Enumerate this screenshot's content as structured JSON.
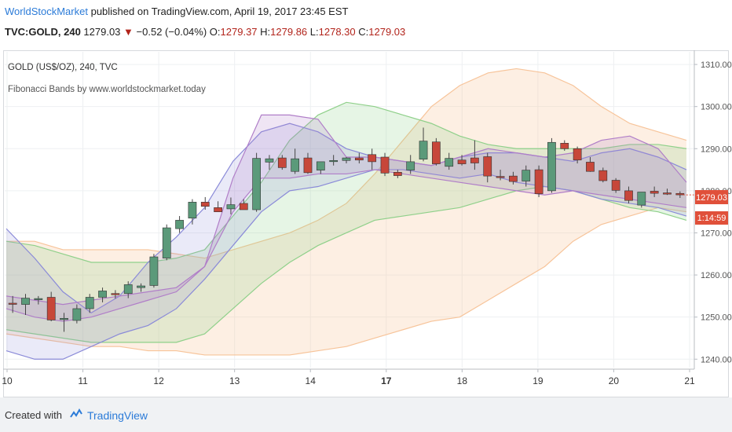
{
  "header": {
    "publisher": "WorldStockMarket",
    "published_text": "published on TradingView.com, April 19, 2017 23:45 EST",
    "symbol": "TVC:GOLD, 240",
    "last": "1279.03",
    "change": "−0.52 (−0.04%)",
    "o_label": "O:",
    "o_value": "1279.37",
    "h_label": "H:",
    "h_value": "1279.86",
    "l_label": "L:",
    "l_value": "1278.30",
    "c_label": "C:",
    "c_value": "1279.03"
  },
  "legend": {
    "title": "GOLD (US$/OZ), 240, TVC",
    "indicator": "Fibonacci Bands by www.worldstockmarket.today"
  },
  "price_label": "1279.03",
  "countdown_label": "1:14:59",
  "footer": {
    "created_with": "Created with",
    "brand": "TradingView"
  },
  "colors": {
    "up": "#5b9a7a",
    "down": "#c7473a",
    "orange_band": "#f7c49a",
    "green_band": "#8fd08a",
    "blue_band": "#8a8ad8",
    "purple_band": "#b07ec8",
    "accent": "#2b7bd8",
    "price_tag": "#e0503a"
  },
  "chart_data": {
    "type": "candlestick",
    "x_ticks": [
      "10",
      "11",
      "12",
      "13",
      "14",
      "17",
      "18",
      "19",
      "20",
      "21"
    ],
    "y_ticks": [
      1240,
      1250,
      1260,
      1270,
      1280,
      1290,
      1300,
      1310
    ],
    "y_tick_labels": [
      "1240.00",
      "1250.00",
      "1260.00",
      "1270.00",
      "1280.00",
      "1290.00",
      "1300.00",
      "1310.00"
    ],
    "ylim": [
      1238,
      1313
    ],
    "candles": [
      {
        "o": 1253.3,
        "h": 1255,
        "l": 1251,
        "c": 1253.1
      },
      {
        "o": 1253,
        "h": 1255.5,
        "l": 1250.5,
        "c": 1254.5
      },
      {
        "o": 1254.2,
        "h": 1255,
        "l": 1253,
        "c": 1254.4
      },
      {
        "o": 1254.7,
        "h": 1256,
        "l": 1249,
        "c": 1249.3
      },
      {
        "o": 1249.4,
        "h": 1251,
        "l": 1246.5,
        "c": 1249.7
      },
      {
        "o": 1249.2,
        "h": 1253,
        "l": 1248.5,
        "c": 1252
      },
      {
        "o": 1252,
        "h": 1255.5,
        "l": 1251,
        "c": 1254.7
      },
      {
        "o": 1254.7,
        "h": 1257,
        "l": 1253.5,
        "c": 1256.2
      },
      {
        "o": 1255.6,
        "h": 1256.4,
        "l": 1254.4,
        "c": 1255.3
      },
      {
        "o": 1255.6,
        "h": 1258.5,
        "l": 1254.5,
        "c": 1257.7
      },
      {
        "o": 1257,
        "h": 1258,
        "l": 1256,
        "c": 1257.4
      },
      {
        "o": 1257.5,
        "h": 1265,
        "l": 1257,
        "c": 1264.3
      },
      {
        "o": 1264,
        "h": 1272,
        "l": 1263.5,
        "c": 1271.2
      },
      {
        "o": 1271,
        "h": 1274,
        "l": 1270,
        "c": 1273
      },
      {
        "o": 1273.5,
        "h": 1278,
        "l": 1272,
        "c": 1277.3
      },
      {
        "o": 1277.3,
        "h": 1278.5,
        "l": 1275.5,
        "c": 1276.3
      },
      {
        "o": 1276,
        "h": 1277.5,
        "l": 1275,
        "c": 1275
      },
      {
        "o": 1275.7,
        "h": 1278.4,
        "l": 1274.4,
        "c": 1276.7
      },
      {
        "o": 1277,
        "h": 1278,
        "l": 1275.5,
        "c": 1275.5
      },
      {
        "o": 1275.5,
        "h": 1289,
        "l": 1275,
        "c": 1287.7
      },
      {
        "o": 1286.8,
        "h": 1288.5,
        "l": 1285,
        "c": 1287.6
      },
      {
        "o": 1287.8,
        "h": 1288.5,
        "l": 1285,
        "c": 1285.5
      },
      {
        "o": 1284.6,
        "h": 1290,
        "l": 1284,
        "c": 1287.6
      },
      {
        "o": 1287.8,
        "h": 1289,
        "l": 1284,
        "c": 1284.3
      },
      {
        "o": 1284.9,
        "h": 1286.5,
        "l": 1284,
        "c": 1286.9
      },
      {
        "o": 1287,
        "h": 1288.5,
        "l": 1286,
        "c": 1287.2
      },
      {
        "o": 1287.2,
        "h": 1288,
        "l": 1286.5,
        "c": 1287.8
      },
      {
        "o": 1287.8,
        "h": 1289,
        "l": 1286.5,
        "c": 1287.3
      },
      {
        "o": 1288.6,
        "h": 1290,
        "l": 1285,
        "c": 1286.9
      },
      {
        "o": 1288,
        "h": 1289,
        "l": 1283.5,
        "c": 1284.2
      },
      {
        "o": 1284.4,
        "h": 1285,
        "l": 1283,
        "c": 1283.6
      },
      {
        "o": 1284.9,
        "h": 1288.5,
        "l": 1284,
        "c": 1286.9
      },
      {
        "o": 1287.5,
        "h": 1295,
        "l": 1287,
        "c": 1291.8
      },
      {
        "o": 1291.6,
        "h": 1292.5,
        "l": 1286,
        "c": 1286.4
      },
      {
        "o": 1285.8,
        "h": 1289,
        "l": 1285,
        "c": 1287.7
      },
      {
        "o": 1287.3,
        "h": 1288.5,
        "l": 1286,
        "c": 1286.4
      },
      {
        "o": 1287.8,
        "h": 1292,
        "l": 1285,
        "c": 1286.6
      },
      {
        "o": 1288.1,
        "h": 1289,
        "l": 1282,
        "c": 1283.5
      },
      {
        "o": 1283.4,
        "h": 1285,
        "l": 1282.5,
        "c": 1283.3
      },
      {
        "o": 1283.5,
        "h": 1284.5,
        "l": 1281.5,
        "c": 1282.2
      },
      {
        "o": 1282.3,
        "h": 1286,
        "l": 1281,
        "c": 1284.9
      },
      {
        "o": 1285,
        "h": 1286,
        "l": 1278.5,
        "c": 1279.3
      },
      {
        "o": 1280,
        "h": 1292.5,
        "l": 1279.5,
        "c": 1291.5
      },
      {
        "o": 1291.3,
        "h": 1292,
        "l": 1289.5,
        "c": 1290
      },
      {
        "o": 1290,
        "h": 1290.5,
        "l": 1286.5,
        "c": 1287.3
      },
      {
        "o": 1286.8,
        "h": 1288,
        "l": 1284.5,
        "c": 1284.6
      },
      {
        "o": 1284.8,
        "h": 1285.5,
        "l": 1282,
        "c": 1282.4
      },
      {
        "o": 1282.5,
        "h": 1283,
        "l": 1279.5,
        "c": 1280.1
      },
      {
        "o": 1280,
        "h": 1281,
        "l": 1277,
        "c": 1277.7
      },
      {
        "o": 1276.6,
        "h": 1279.5,
        "l": 1276,
        "c": 1279.7
      },
      {
        "o": 1279.9,
        "h": 1281,
        "l": 1278.5,
        "c": 1279.4
      },
      {
        "o": 1279.5,
        "h": 1280.5,
        "l": 1279,
        "c": 1279.2
      },
      {
        "o": 1279.37,
        "h": 1279.86,
        "l": 1278.3,
        "c": 1279.03
      }
    ],
    "bands": {
      "orange": {
        "upper": [
          1268,
          1268,
          1266,
          1266,
          1266,
          1266,
          1265,
          1264,
          1266,
          1268,
          1270,
          1273,
          1277,
          1284,
          1292,
          1300,
          1305,
          1308,
          1309,
          1308,
          1305,
          1300,
          1296,
          1294,
          1292
        ],
        "lower": [
          1246,
          1245,
          1244,
          1243,
          1243,
          1242,
          1242,
          1241,
          1241,
          1241,
          1241,
          1242,
          1243,
          1245,
          1247,
          1249,
          1250,
          1254,
          1258,
          1262,
          1268,
          1272,
          1274,
          1276,
          1275
        ]
      },
      "green": {
        "upper": [
          1268,
          1267,
          1265,
          1263,
          1263,
          1263,
          1264,
          1266,
          1274,
          1282,
          1292,
          1298,
          1301,
          1300,
          1298,
          1296,
          1293,
          1291,
          1290,
          1290,
          1290,
          1290,
          1291,
          1291,
          1290
        ],
        "lower": [
          1247,
          1246,
          1245,
          1244,
          1244,
          1244,
          1244,
          1246,
          1252,
          1258,
          1263,
          1267,
          1270,
          1273,
          1274,
          1275,
          1276,
          1278,
          1280,
          1281,
          1280,
          1278,
          1276,
          1275,
          1273
        ]
      },
      "blue": {
        "upper": [
          1271,
          1264,
          1256,
          1251,
          1255,
          1263,
          1269,
          1276,
          1287,
          1294,
          1296,
          1294,
          1290,
          1288,
          1287,
          1286,
          1288,
          1289,
          1289,
          1288,
          1287,
          1289,
          1290,
          1288,
          1285
        ],
        "lower": [
          1242,
          1240,
          1240,
          1243,
          1246,
          1248,
          1252,
          1259,
          1267,
          1275,
          1280,
          1281,
          1283,
          1285,
          1285,
          1284,
          1283,
          1284,
          1282,
          1281,
          1280,
          1278,
          1277,
          1276,
          1274
        ]
      },
      "purple": {
        "upper": [
          1255,
          1254,
          1253,
          1254,
          1255,
          1256,
          1257,
          1262,
          1283,
          1298,
          1298,
          1297,
          1288,
          1288,
          1287,
          1286,
          1288,
          1290,
          1289,
          1288,
          1289,
          1292,
          1293,
          1290,
          1282
        ],
        "lower": [
          1252,
          1250,
          1249,
          1250,
          1252,
          1254,
          1256,
          1262,
          1275,
          1283,
          1283,
          1284,
          1284,
          1285,
          1284,
          1283,
          1282,
          1281,
          1280,
          1279,
          1280,
          1279,
          1278,
          1277,
          1276
        ]
      }
    }
  }
}
